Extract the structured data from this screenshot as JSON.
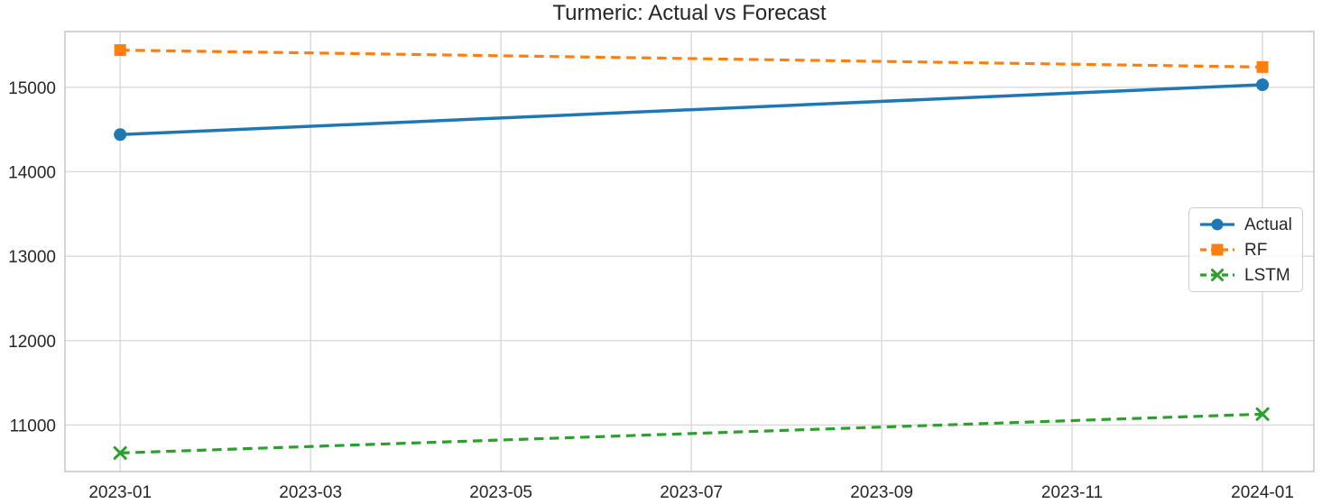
{
  "figure": {
    "background": "#ffffff",
    "text_color": "#262626",
    "grid_color": "#d9d9d9",
    "spine_color": "#c9c9c9"
  },
  "chart_data": {
    "type": "line",
    "title": "Turmeric: Actual vs Forecast",
    "xlabel": "",
    "ylabel": "",
    "grid": true,
    "legend_position": "center right",
    "x_tick_labels": [
      "2023-01",
      "2023-03",
      "2023-05",
      "2023-07",
      "2023-09",
      "2023-11",
      "2024-01"
    ],
    "x_tick_positions": [
      0,
      2,
      4,
      6,
      8,
      10,
      12
    ],
    "xlim": [
      -0.58,
      12.54
    ],
    "y_ticks": [
      11000,
      12000,
      13000,
      14000,
      15000
    ],
    "ylim": [
      10450,
      15660
    ],
    "series": [
      {
        "name": "Actual",
        "color": "#1f77b4",
        "line_style": "solid",
        "marker": "circle",
        "x": [
          0,
          12
        ],
        "values": [
          14440,
          15030
        ]
      },
      {
        "name": "RF",
        "color": "#ff7f0e",
        "line_style": "dashed",
        "marker": "square",
        "x": [
          0,
          12
        ],
        "values": [
          15440,
          15240
        ]
      },
      {
        "name": "LSTM",
        "color": "#2ca02c",
        "line_style": "dashed",
        "marker": "x",
        "x": [
          0,
          12
        ],
        "values": [
          10670,
          11130
        ]
      }
    ]
  }
}
